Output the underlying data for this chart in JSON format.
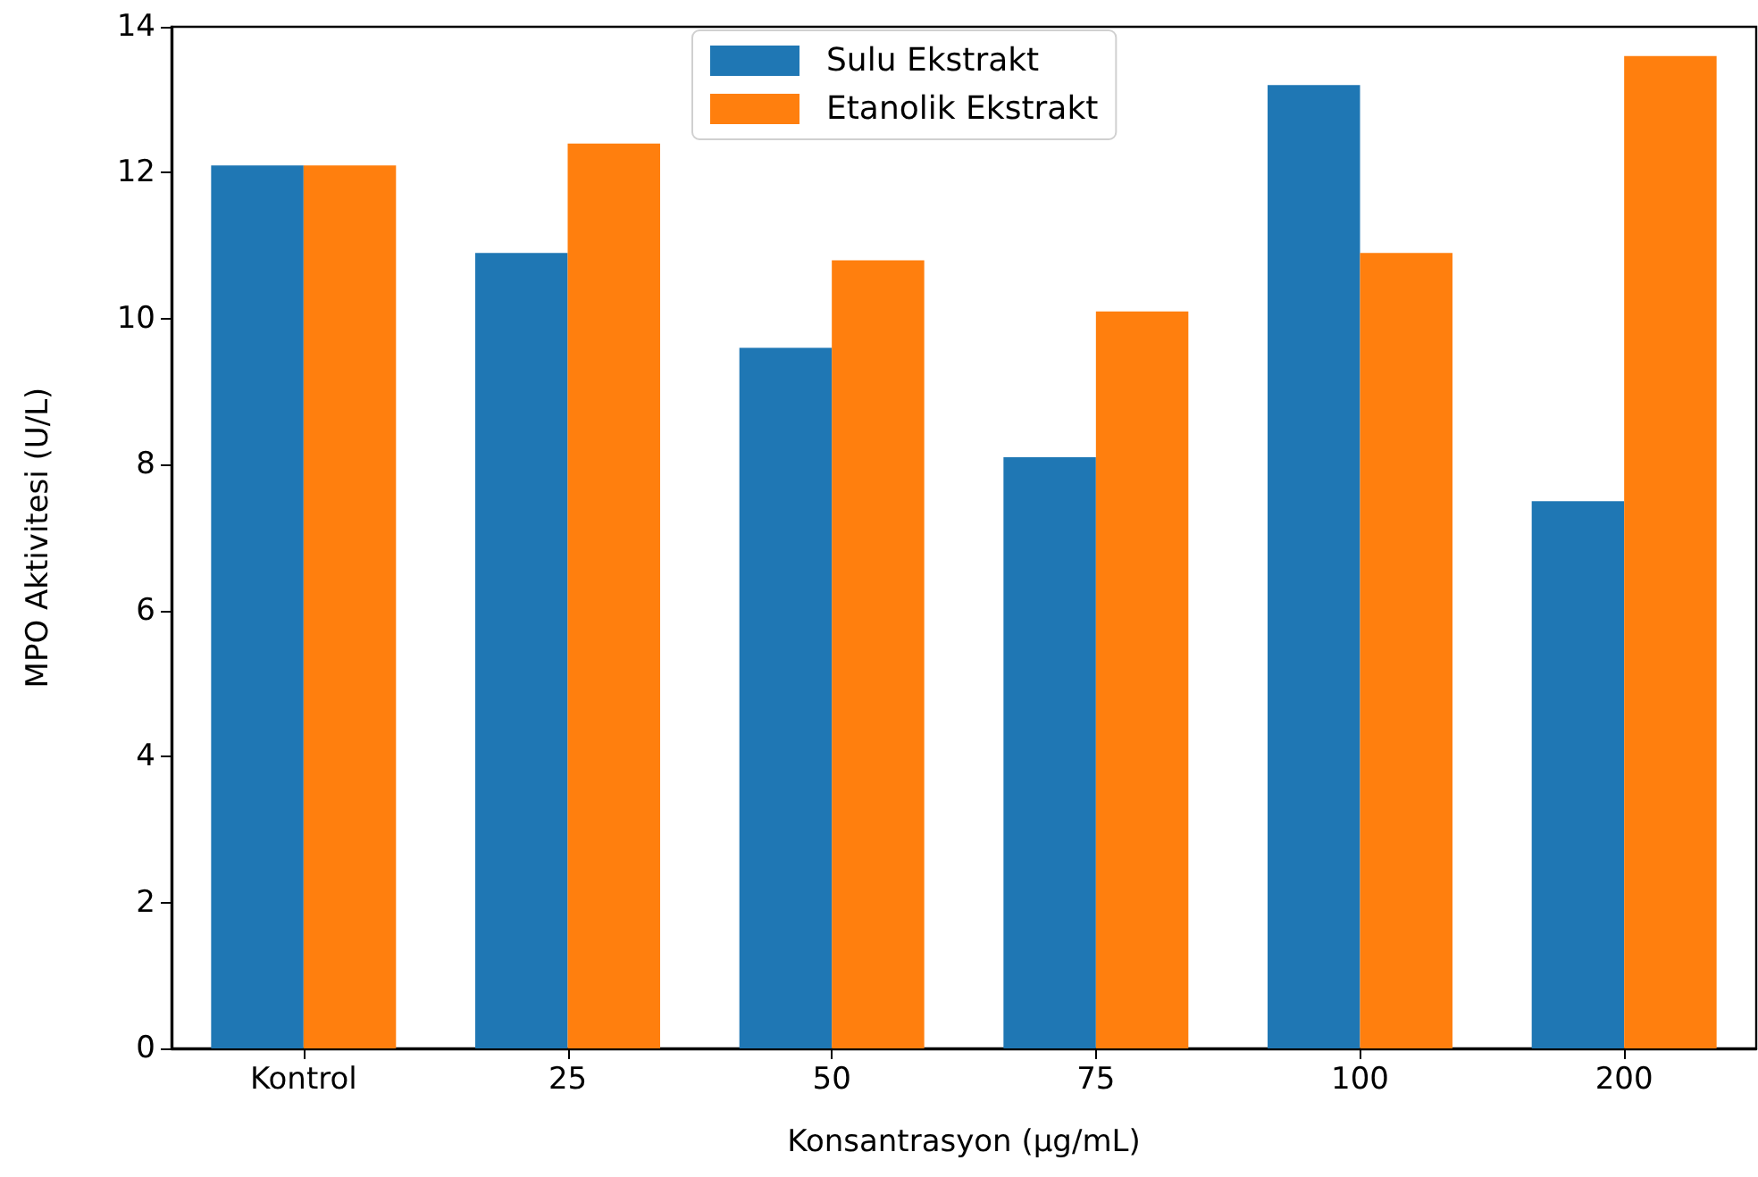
{
  "chart_data": {
    "type": "bar",
    "xlabel": "Konsantrasyon (μg/mL)",
    "ylabel": "MPO Aktivitesi (U/L)",
    "categories": [
      "Kontrol",
      "25",
      "50",
      "75",
      "100",
      "200"
    ],
    "series": [
      {
        "name": "Sulu Ekstrakt",
        "color": "#1f77b4",
        "values": [
          12.1,
          10.9,
          9.6,
          8.1,
          13.2,
          7.5
        ]
      },
      {
        "name": "Etanolik Ekstrakt",
        "color": "#ff7f0e",
        "values": [
          12.1,
          12.4,
          10.8,
          10.1,
          10.9,
          13.6
        ]
      }
    ],
    "ylim": [
      0,
      14
    ],
    "yticks": [
      0,
      2,
      4,
      6,
      8,
      10,
      12,
      14
    ],
    "grid": false,
    "legend": "top"
  }
}
